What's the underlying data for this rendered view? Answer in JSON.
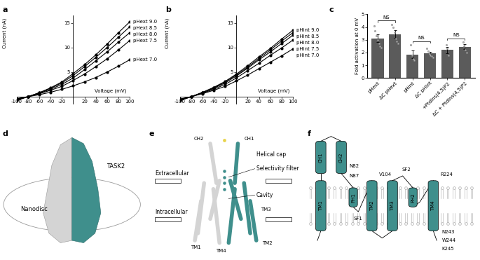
{
  "chart_data": [
    {
      "panel_label": "a",
      "type": "line",
      "xlabel": "Voltage (mV)",
      "ylabel": "Current (nA)",
      "x": [
        -100,
        -80,
        -60,
        -40,
        -20,
        0,
        20,
        40,
        60,
        80,
        100
      ],
      "series": [
        {
          "name": "pHext 9.0",
          "color": "#000000",
          "values": [
            -0.8,
            0,
            0.8,
            1.8,
            3.0,
            4.7,
            6.5,
            8.5,
            10.7,
            13.0,
            15.2
          ]
        },
        {
          "name": "pHext 8.5",
          "color": "#000000",
          "values": [
            -0.7,
            0,
            0.8,
            1.7,
            2.8,
            4.3,
            6.1,
            8.0,
            10.0,
            12.1,
            14.2
          ]
        },
        {
          "name": "pHext 8.0",
          "color": "#000000",
          "values": [
            -0.6,
            0,
            0.7,
            1.5,
            2.5,
            3.8,
            5.5,
            7.3,
            9.1,
            11.1,
            13.0
          ]
        },
        {
          "name": "pHext 7.5",
          "color": "#000000",
          "values": [
            -0.5,
            0,
            0.6,
            1.3,
            2.1,
            3.3,
            4.6,
            6.1,
            7.7,
            9.5,
            11.4
          ]
        },
        {
          "name": "pHext 7.0",
          "color": "#000000",
          "values": [
            -0.4,
            0,
            0.4,
            0.9,
            1.5,
            2.2,
            3.0,
            3.9,
            5.0,
            6.2,
            7.5
          ]
        }
      ],
      "marker": "o",
      "xlim": [
        -100,
        100
      ],
      "ylim": [
        -1.5,
        16.5
      ],
      "xticks": [
        -100,
        -80,
        -60,
        -40,
        -20,
        20,
        40,
        60,
        80,
        100
      ],
      "yticks": [
        5,
        10,
        15
      ]
    },
    {
      "panel_label": "b",
      "type": "line",
      "xlabel": "Voltage (mV)",
      "ylabel": "Current (nA)",
      "x": [
        -100,
        -80,
        -60,
        -40,
        -20,
        0,
        20,
        40,
        60,
        80,
        100
      ],
      "series": [
        {
          "name": "pHint 9.0",
          "color": "#000000",
          "values": [
            -0.8,
            0,
            0.9,
            1.9,
            3.1,
            4.6,
            6.3,
            8.1,
            9.8,
            11.7,
            13.5
          ]
        },
        {
          "name": "pHint 8.5",
          "color": "#000000",
          "values": [
            -0.8,
            0,
            0.8,
            1.8,
            3.0,
            4.4,
            6.0,
            7.8,
            9.5,
            11.3,
            13.0
          ]
        },
        {
          "name": "pHint 8.0",
          "color": "#000000",
          "values": [
            -0.7,
            0,
            0.8,
            1.7,
            2.8,
            4.2,
            5.8,
            7.5,
            9.1,
            10.8,
            12.5
          ]
        },
        {
          "name": "pHint 7.5",
          "color": "#000000",
          "values": [
            -0.6,
            0,
            0.7,
            1.5,
            2.5,
            3.8,
            5.3,
            6.8,
            8.4,
            9.9,
            11.5
          ]
        },
        {
          "name": "pHint 7.0",
          "color": "#000000",
          "values": [
            -0.5,
            0,
            0.6,
            1.3,
            2.1,
            3.2,
            4.4,
            5.7,
            7.0,
            8.3,
            9.7
          ]
        }
      ],
      "marker": "o",
      "xlim": [
        -100,
        100
      ],
      "ylim": [
        -1.5,
        16.5
      ],
      "xticks": [
        -100,
        -80,
        -60,
        -40,
        -20,
        20,
        40,
        60,
        80,
        100
      ],
      "yticks": [
        5,
        10,
        15
      ]
    },
    {
      "panel_label": "c",
      "type": "bar",
      "ylabel": "Fold activation at 0 mV",
      "categories": [
        "pHext",
        "ΔC pHext",
        "pHint",
        "ΔC pHint",
        "+PtdIns(4,5)P2",
        "ΔC + PtdIns(4,5)P2"
      ],
      "values": [
        3.1,
        3.45,
        1.85,
        1.95,
        2.2,
        2.45
      ],
      "errors": [
        0.3,
        0.3,
        0.3,
        0.12,
        0.25,
        0.2
      ],
      "points": [
        [
          4.1,
          3.7,
          3.3,
          3.0,
          2.7,
          2.5,
          2.4
        ],
        [
          4.2,
          4.0,
          3.6,
          3.1,
          2.9,
          2.7
        ],
        [
          2.6,
          1.8,
          1.5,
          1.4
        ],
        [
          2.3,
          2.1,
          1.9,
          1.8,
          1.7,
          1.6
        ],
        [
          2.6,
          2.3,
          1.8
        ],
        [
          2.8,
          2.5,
          2.2,
          2.0
        ]
      ],
      "annotations": [
        {
          "text": "NS",
          "between": [
            0,
            1
          ]
        },
        {
          "text": "NS",
          "between": [
            2,
            3
          ]
        },
        {
          "text": "NS",
          "between": [
            4,
            5
          ]
        }
      ],
      "color": "#5b5b5b",
      "ylim": [
        0,
        5
      ],
      "yticks": [
        0,
        1,
        2,
        3,
        4,
        5
      ]
    }
  ],
  "diagrams": {
    "d": {
      "panel_label": "d",
      "labels": {
        "protein": "TASK2",
        "nanodisc": "Nanodisc"
      }
    },
    "e": {
      "panel_label": "e",
      "labels": {
        "ch2": "CH2",
        "ch1": "CH1",
        "cap": "Helical cap",
        "sf": "Selectivity filter",
        "extra": "Extracellular",
        "intra": "Intracellular",
        "cavity": "Cavity",
        "tm3": "TM3",
        "tm1": "TM1",
        "tm4": "TM4",
        "tm2": "TM2"
      }
    },
    "f": {
      "panel_label": "f",
      "helices": {
        "ch1": "CH1",
        "ch2": "CH2",
        "tm1": "TM1",
        "ph1": "PH1",
        "tm2": "TM2",
        "tm3": "TM3",
        "ph2": "PH2",
        "tm4": "TM4"
      },
      "residues": {
        "n82": "N82",
        "n87": "N87",
        "v104": "V104",
        "sf1": "SF1",
        "sf2": "SF2",
        "r224": "R224",
        "n243": "N243",
        "w244": "W244",
        "k245": "K245"
      }
    }
  }
}
